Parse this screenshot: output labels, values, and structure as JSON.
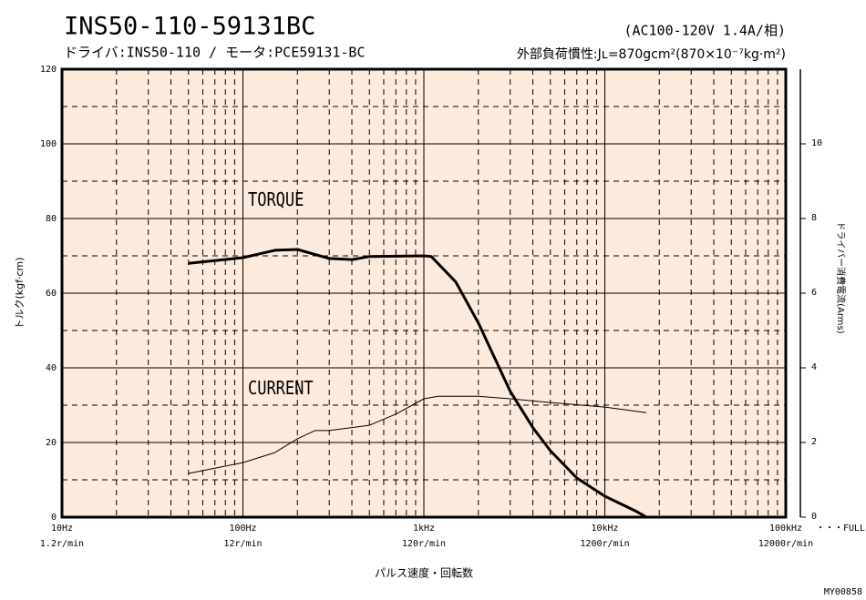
{
  "chart_data": {
    "type": "line",
    "title": "INS50-110-59131BC",
    "subtitle": "ドライバ:INS50-110 / モータ:PCE59131-BC",
    "power_note": "(AC100-120V  1.4A/相)",
    "inertia_note": "外部負荷慣性:Jʟ=870gcm²(870×10⁻⁷kg·m²)",
    "xlabel": "パルス速度・回転数",
    "ylabel": "トルク(kgf·cm)",
    "y2label": "ドライバー消費電流(Arms)",
    "full_label": "・・・FULL",
    "figure_id": "MY00858",
    "log_x": true,
    "grid": true,
    "background": "#fcebdd",
    "xlim": [
      10,
      100000
    ],
    "xticks": [
      {
        "value": 10,
        "label": "10Hz"
      },
      {
        "value": 100,
        "label": "100Hz"
      },
      {
        "value": 1000,
        "label": "1kHz"
      },
      {
        "value": 10000,
        "label": "10kHz"
      },
      {
        "value": 100000,
        "label": "100kHz"
      }
    ],
    "xtick_speed_labels": [
      "1.2r/min",
      "12r/min",
      "120r/min",
      "1200r/min",
      "12000r/min"
    ],
    "xminor": [
      20,
      30,
      40,
      50,
      60,
      70,
      80,
      90,
      200,
      300,
      400,
      500,
      600,
      700,
      800,
      900,
      2000,
      3000,
      4000,
      5000,
      6000,
      7000,
      8000,
      9000,
      20000,
      30000,
      40000,
      50000,
      60000,
      70000,
      80000,
      90000
    ],
    "ylim": [
      0,
      120
    ],
    "yticks": [
      0,
      20,
      40,
      60,
      80,
      100,
      120
    ],
    "yminor": [
      10,
      30,
      50,
      70,
      90,
      110
    ],
    "y2lim": [
      0,
      12
    ],
    "y2ticks": [
      0,
      2,
      4,
      6,
      8,
      10
    ],
    "series": [
      {
        "name": "TORQUE",
        "color": "#000000",
        "axis": "y",
        "x": [
          50,
          100,
          150,
          200,
          300,
          400,
          500,
          1000,
          1100,
          1500,
          2000,
          3000,
          4000,
          5000,
          7000,
          10000,
          15000,
          17000
        ],
        "values": [
          68,
          69.5,
          71.5,
          71.7,
          69.3,
          69,
          69.8,
          70,
          69.8,
          63,
          52,
          33.7,
          24,
          17.8,
          10.5,
          5.6,
          1.5,
          0
        ]
      },
      {
        "name": "CURRENT",
        "color": "#000000",
        "axis": "y2",
        "x": [
          50,
          100,
          150,
          200,
          250,
          300,
          500,
          700,
          1000,
          1200,
          2000,
          3000,
          5000,
          10000,
          17000
        ],
        "values": [
          1.17,
          1.46,
          1.73,
          2.1,
          2.32,
          2.32,
          2.46,
          2.76,
          3.17,
          3.24,
          3.24,
          3.17,
          3.07,
          2.95,
          2.8
        ]
      }
    ]
  }
}
